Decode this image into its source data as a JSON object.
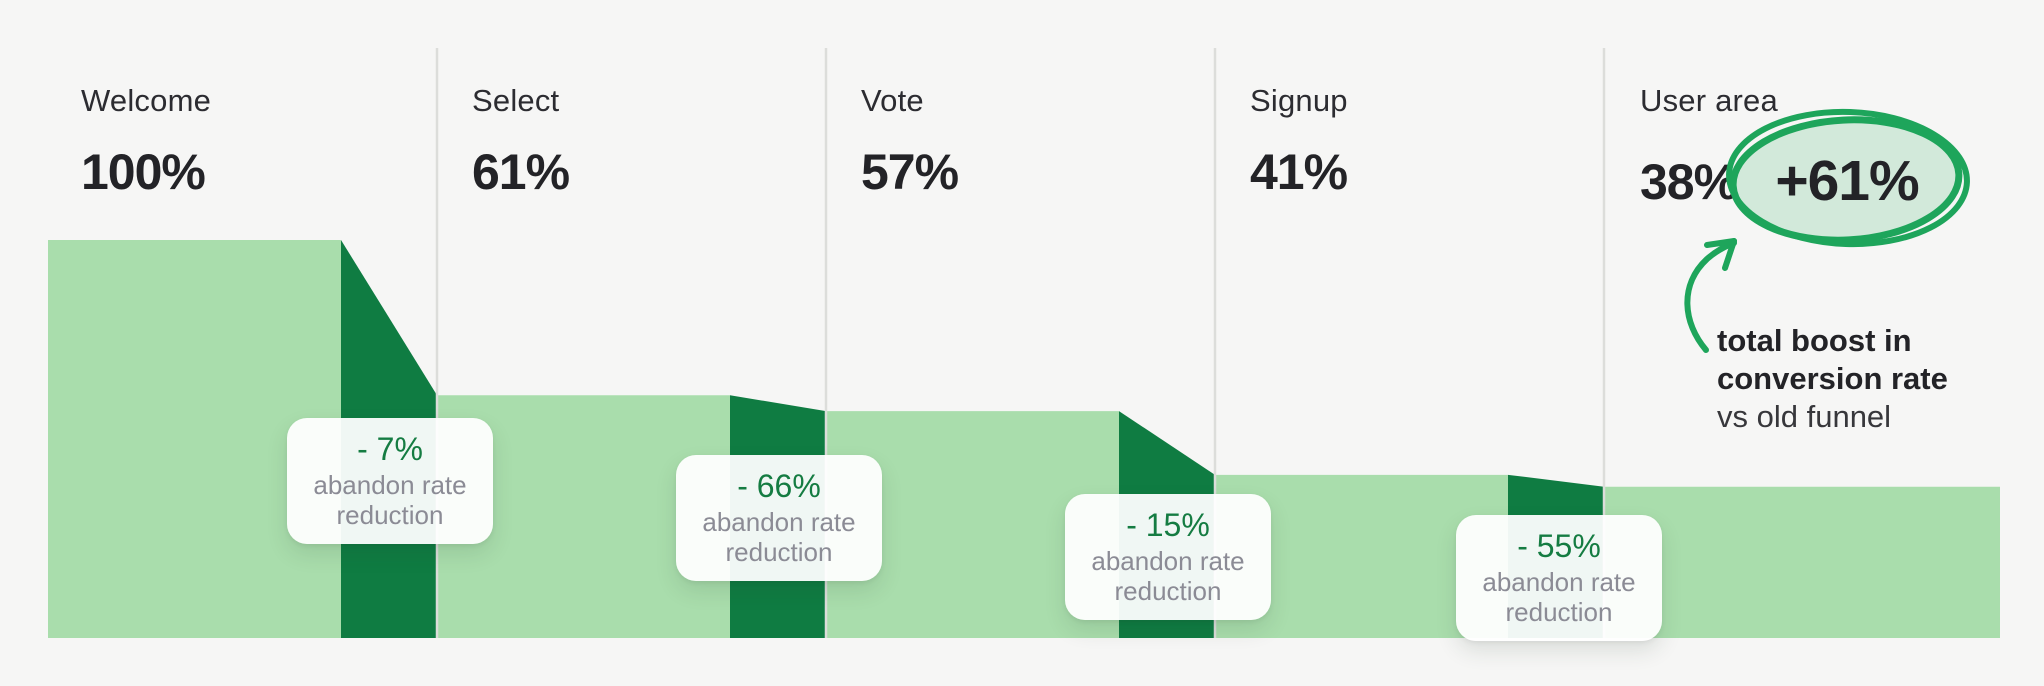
{
  "chart_data": {
    "type": "area",
    "subtype": "funnel",
    "title": "",
    "categories": [
      "Welcome",
      "Select",
      "Vote",
      "Signup",
      "User area"
    ],
    "values": [
      100,
      61,
      57,
      41,
      38
    ],
    "ylim": [
      0,
      100
    ],
    "grid": false,
    "stages": [
      {
        "label": "Welcome",
        "value": 100,
        "value_label": "100%"
      },
      {
        "label": "Select",
        "value": 61,
        "value_label": "61%"
      },
      {
        "label": "Vote",
        "value": 57,
        "value_label": "57%"
      },
      {
        "label": "Signup",
        "value": 41,
        "value_label": "41%"
      },
      {
        "label": "User area",
        "value": 38,
        "value_label": "38%"
      }
    ],
    "transitions": [
      {
        "drop_label": "- 7%",
        "note": "abandon rate reduction"
      },
      {
        "drop_label": "- 66%",
        "note": "abandon rate reduction"
      },
      {
        "drop_label": "- 15%",
        "note": "abandon rate reduction"
      },
      {
        "drop_label": "- 55%",
        "note": "abandon rate reduction"
      }
    ],
    "annotation": {
      "boost_label": "+61%",
      "caption_line1": "total boost in",
      "caption_line2": "conversion rate",
      "caption_sub": "vs old funnel"
    },
    "colors": {
      "background": "#f6f6f5",
      "funnel_light": "#a9ddac",
      "funnel_dark": "#0f7c42",
      "divider": "#dcddda",
      "badge_drop_green": "#157c42",
      "badge_note_gray": "#8b8b95",
      "label_dark": "#232327",
      "annotation_green": "#1ea55b",
      "halo_fill": "#d2e9da"
    }
  }
}
